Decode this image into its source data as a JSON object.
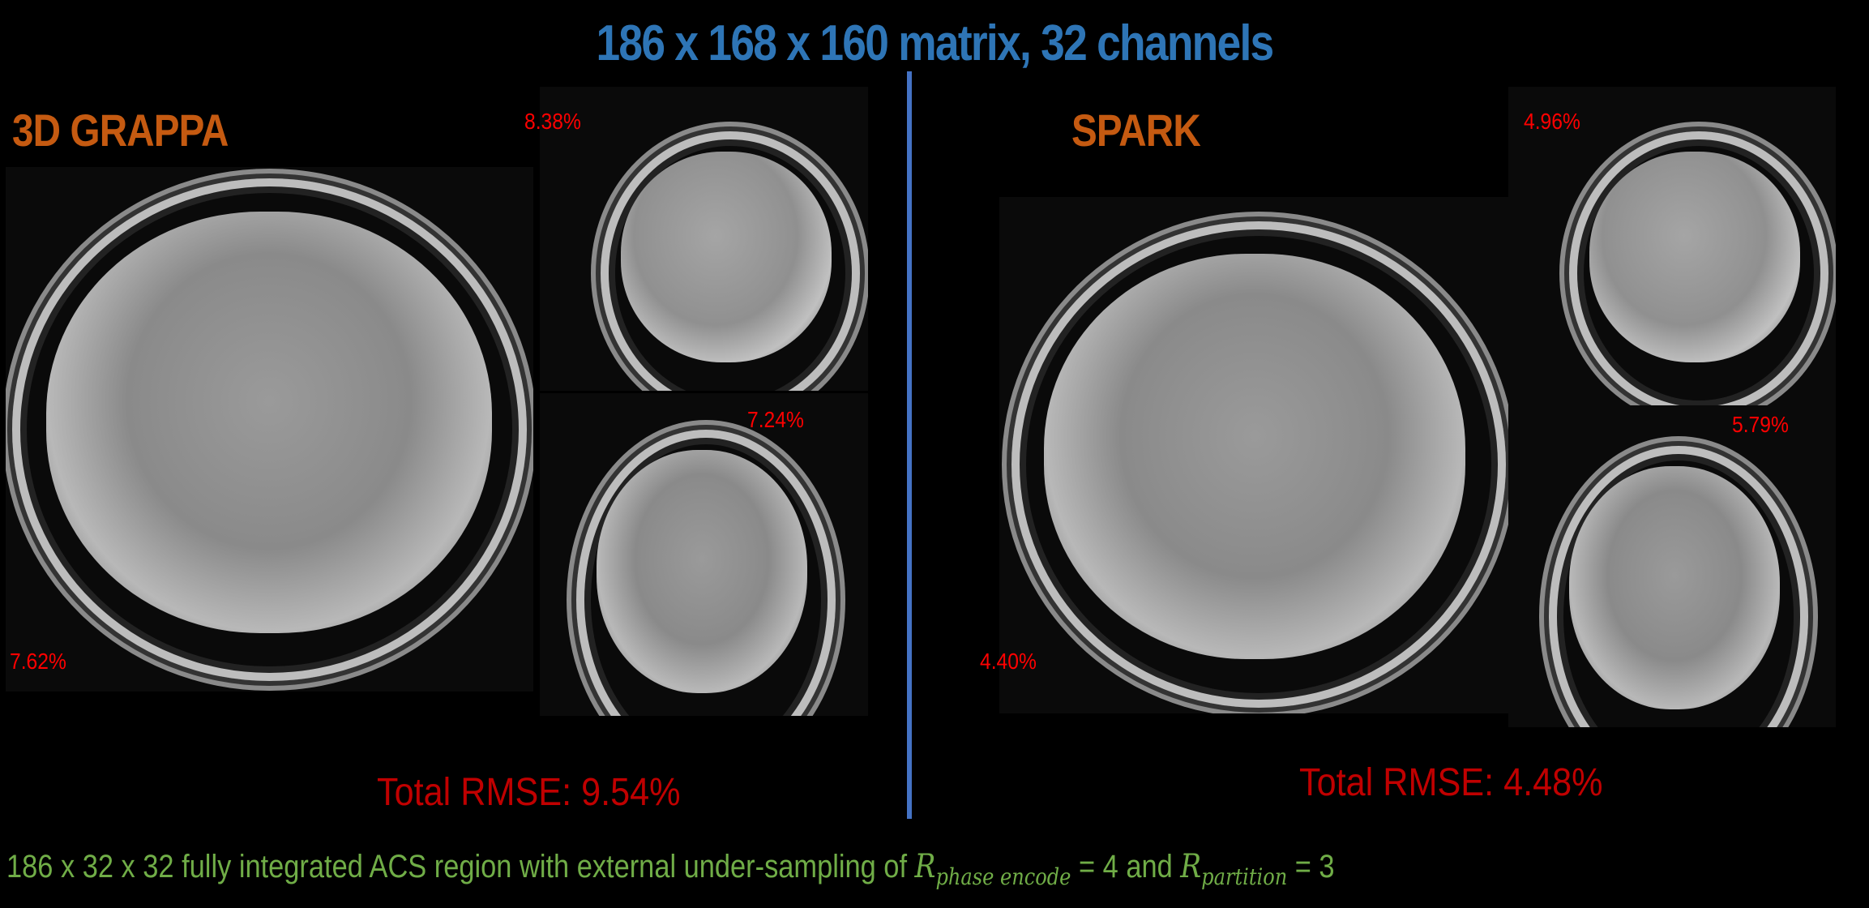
{
  "title": "186 x 168 x 160 matrix, 32 channels",
  "left": {
    "method": "3D GRAPPA",
    "sagittal_error": "8.38%",
    "coronal_error": "7.24%",
    "axial_error": "7.62%",
    "total": "Total RMSE: 9.54%"
  },
  "right": {
    "method": "SPARK",
    "sagittal_error": "4.96%",
    "coronal_error": "5.79%",
    "axial_error": "4.40%",
    "total": "Total RMSE: 4.48%"
  },
  "footer": {
    "text": "186 x 32 x 32 fully integrated ACS region with external under-sampling of ",
    "r": "R",
    "sub1": "phase encode",
    "eq1": " = 4 and ",
    "sub2": "partition",
    "eq2": " = 3"
  },
  "colors": {
    "title": "#2e75b6",
    "method": "#c55a11",
    "error": "#ff0000",
    "rmse": "#c00000",
    "footer": "#70ad47",
    "divider": "#4472c4"
  }
}
